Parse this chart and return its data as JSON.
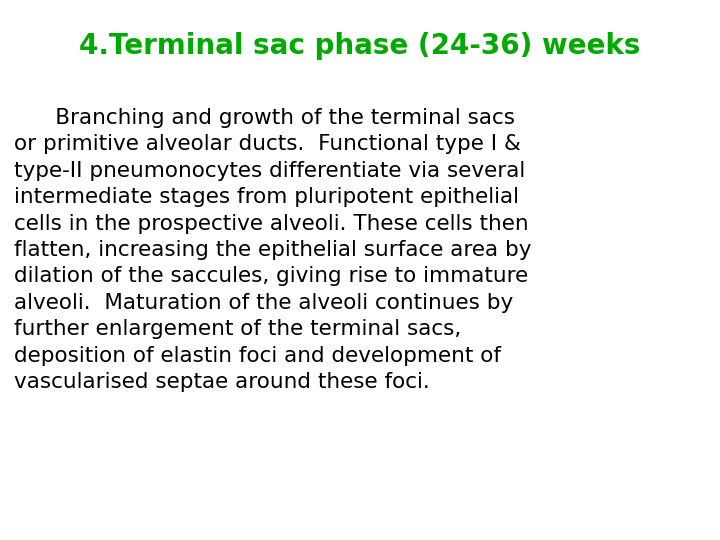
{
  "title": "4.Terminal sac phase (24-36) weeks",
  "title_color": "#00aa00",
  "title_fontsize": 20,
  "body_text": "      Branching and growth of the terminal sacs\nor primitive alveolar ducts.  Functional type I &\ntype-II pneumonocytes differentiate via several\nintermediate stages from pluripotent epithelial\ncells in the prospective alveoli. These cells then\nflatten, increasing the epithelial surface area by\ndilation of the saccules, giving rise to immature\nalveoli.  Maturation of the alveoli continues by\nfurther enlargement of the terminal sacs,\ndeposition of elastin foci and development of\nvascularised septae around these foci.",
  "body_color": "#000000",
  "body_fontsize": 15.5,
  "background_color": "#ffffff",
  "fig_width": 7.2,
  "fig_height": 5.4,
  "dpi": 100
}
